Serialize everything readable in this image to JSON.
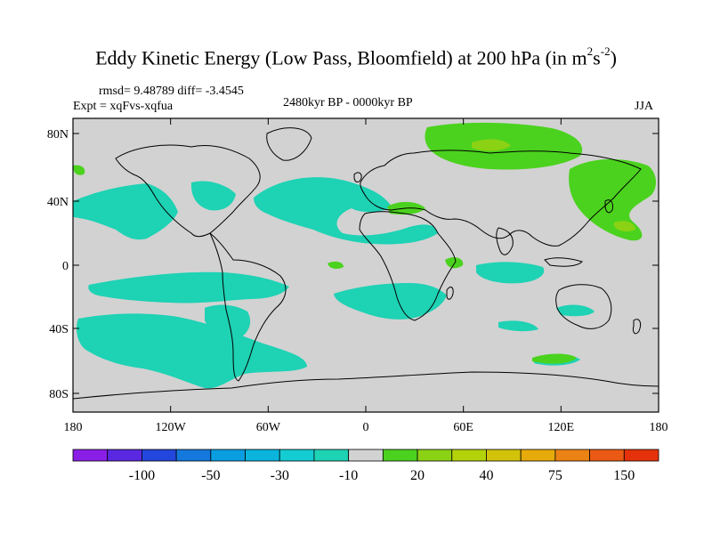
{
  "title": {
    "main": "Eddy Kinetic Energy (Low Pass, Bloomfield) at 200 hPa (in m",
    "sup1": "2",
    "mid": "s",
    "sup2": "-2",
    "end": ")"
  },
  "stats": {
    "rmsd_diff": "rmsd= 9.48789 diff= -3.4545",
    "expt": "Expt = xqFvs-xqfua",
    "period": "2480kyr BP - 0000kyr BP",
    "season": "JJA"
  },
  "axes": {
    "y_ticks": [
      "80N",
      "40N",
      "0",
      "40S",
      "80S"
    ],
    "x_ticks": [
      "180",
      "120W",
      "60W",
      "0",
      "60E",
      "120E",
      "180"
    ]
  },
  "colorbar": {
    "labels": [
      "-100",
      "-50",
      "-30",
      "-10",
      "20",
      "40",
      "75",
      "150"
    ],
    "colors": [
      "#8a1ee6",
      "#5a28e0",
      "#2346dc",
      "#1478dc",
      "#0a9ee0",
      "#0ab4dc",
      "#14cdd2",
      "#1ed2b4",
      "#d2d2d2",
      "#4bd21e",
      "#8cd214",
      "#b4d20a",
      "#d2c30a",
      "#e6aa0a",
      "#eb8214",
      "#eb5a14",
      "#e6320a"
    ]
  },
  "colors": {
    "land_outline": "#000000",
    "background_field": "#d2d2d2",
    "cyan_field": "#1ed2b4",
    "light_cyan_field": "#14cdd2",
    "green_field": "#4bd21e",
    "yellowgreen_field": "#8cd214"
  }
}
